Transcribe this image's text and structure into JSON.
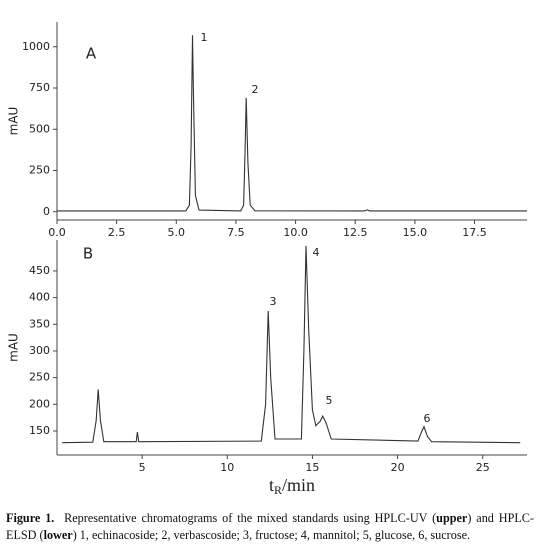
{
  "chart_data": [
    {
      "type": "line",
      "panel_label": "A",
      "y_label": "mAU",
      "color": "#333333",
      "x": [
        0,
        5.4,
        5.55,
        5.62,
        5.68,
        5.72,
        5.8,
        5.95,
        7.7,
        7.82,
        7.88,
        7.93,
        8.0,
        8.1,
        8.3,
        12.9,
        13.0,
        13.1,
        19.7
      ],
      "values": [
        5,
        5,
        40,
        400,
        1070,
        700,
        100,
        10,
        5,
        40,
        350,
        690,
        300,
        40,
        6,
        5,
        12,
        5,
        5
      ],
      "annotations": [
        "1",
        "2"
      ],
      "xlim": [
        0,
        19.7
      ],
      "ylim": [
        -50,
        1150
      ],
      "xticks": [
        {
          "value": 0,
          "label": "0.0"
        },
        {
          "value": 2.5,
          "label": "2.5"
        },
        {
          "value": 5,
          "label": "5.0"
        },
        {
          "value": 7.5,
          "label": "7.5"
        },
        {
          "value": 10,
          "label": "10.0"
        },
        {
          "value": 12.5,
          "label": "12.5"
        },
        {
          "value": 15,
          "label": "15.0"
        },
        {
          "value": 17.5,
          "label": "17.5"
        }
      ],
      "yticks": [
        0,
        250,
        500,
        750,
        1000
      ]
    },
    {
      "type": "line",
      "panel_label": "B",
      "y_label": "mAU",
      "color": "#333333",
      "x": [
        0.3,
        2.1,
        2.3,
        2.42,
        2.55,
        2.75,
        4.65,
        4.72,
        4.8,
        12.0,
        12.25,
        12.4,
        12.55,
        12.8,
        14.35,
        14.5,
        14.62,
        14.78,
        15.0,
        15.2,
        15.45,
        15.6,
        15.8,
        16.1,
        21.2,
        21.4,
        21.55,
        21.75,
        22.0,
        27.2
      ],
      "values": [
        128,
        129,
        170,
        228,
        170,
        130,
        130,
        148,
        130,
        131,
        200,
        375,
        250,
        135,
        135,
        300,
        497,
        340,
        190,
        160,
        168,
        178,
        165,
        135,
        131,
        148,
        158,
        140,
        130,
        128
      ],
      "annotations": [
        "3",
        "4",
        "5",
        "6"
      ],
      "x_label": {
        "base": "t",
        "subscript": "R",
        "rest": "/min"
      },
      "xlim": [
        0,
        27.6
      ],
      "ylim": [
        105,
        508
      ],
      "xticks": [
        5,
        10,
        15,
        20,
        25
      ],
      "yticks": [
        150,
        200,
        250,
        300,
        350,
        400,
        450
      ]
    }
  ],
  "caption": [
    {
      "text": "Figure 1.",
      "bold": true
    },
    {
      "text": "  Representative chromatograms of the mixed standards using HPLC-UV (",
      "bold": false
    },
    {
      "text": "upper",
      "bold": true
    },
    {
      "text": ") and HPLC-ELSD (",
      "bold": false
    },
    {
      "text": "lower",
      "bold": true
    },
    {
      "text": ") 1, echinacoside; 2, verbascoside; 3, fructose; 4, mannitol; 5, glucose, 6, sucrose.",
      "bold": false
    }
  ]
}
